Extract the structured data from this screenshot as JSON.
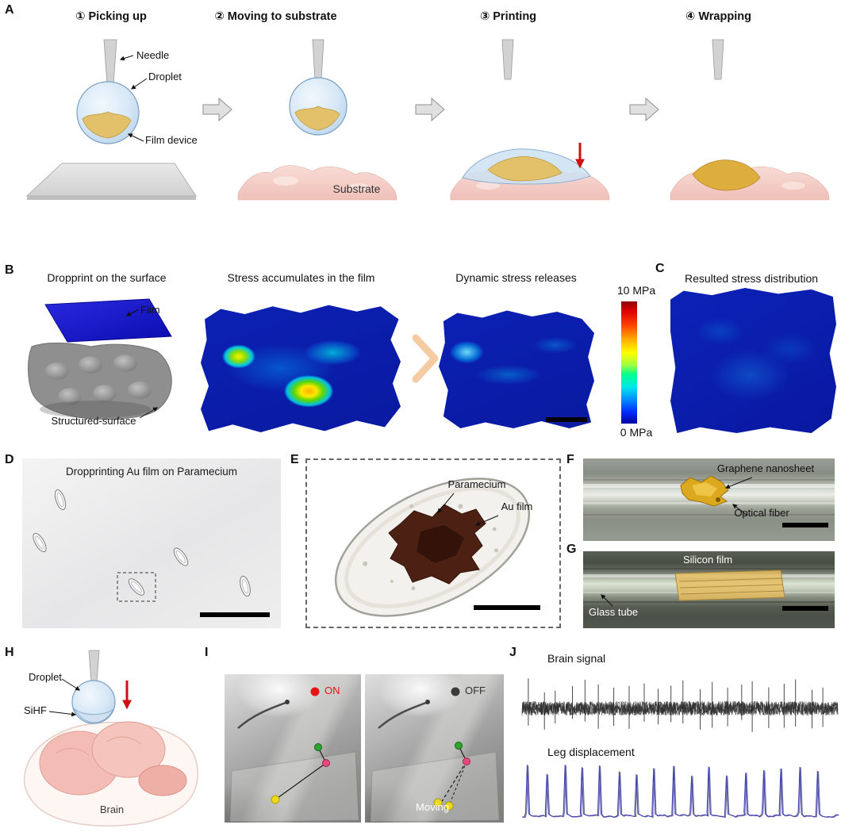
{
  "figure": {
    "colors": {
      "heatmap_blue": "#0b1fae",
      "droplet_blue": "#d6e7f6",
      "film_gold": "#e3c06a",
      "substrate_pink": "#f3ccc5",
      "red_arrow": "#cc1111",
      "au_film_brown": "#4c2114",
      "leg_trace_blue": "#3b3bb0"
    },
    "panels": {
      "A": {
        "label": "A",
        "steps": [
          {
            "title": "① Picking up"
          },
          {
            "title": "② Moving to substrate"
          },
          {
            "title": "③ Printing"
          },
          {
            "title": "④ Wrapping"
          }
        ],
        "annotations": {
          "needle": "Needle",
          "droplet": "Droplet",
          "film_device": "Film device",
          "substrate": "Substrate"
        }
      },
      "B": {
        "label": "B",
        "titles": [
          "Dropprint on the surface",
          "Stress accumulates in the film",
          "Dynamic stress releases"
        ],
        "annotations": {
          "film": "Film",
          "structured_surface": "Structured-surface"
        },
        "colorbar": {
          "top": "10 MPa",
          "bottom": "0 MPa"
        }
      },
      "C": {
        "label": "C",
        "title": "Resulted stress distribution"
      },
      "D": {
        "label": "D",
        "title": "Dropprinting Au film on Paramecium"
      },
      "E": {
        "label": "E",
        "annotations": {
          "paramecium": "Paramecium",
          "au_film": "Au film"
        }
      },
      "F": {
        "label": "F",
        "annotations": {
          "graphene": "Graphene nanosheet",
          "fiber": "Optical fiber"
        }
      },
      "G": {
        "label": "G",
        "annotations": {
          "silicon": "Silicon film",
          "tube": "Glass tube"
        }
      },
      "H": {
        "label": "H",
        "annotations": {
          "droplet": "Droplet",
          "sihf": "SiHF",
          "brain": "Brain"
        }
      },
      "I": {
        "label": "I",
        "on": "ON",
        "off": "OFF",
        "moving": "Moving"
      },
      "J": {
        "label": "J",
        "brain_title": "Brain signal",
        "leg_title": "Leg displacement",
        "traces": {
          "brain": {
            "spike_count": 22,
            "color": "#2b2b2b"
          },
          "leg": {
            "peak_count": 17,
            "color": "#3b3bb0"
          }
        }
      }
    }
  }
}
